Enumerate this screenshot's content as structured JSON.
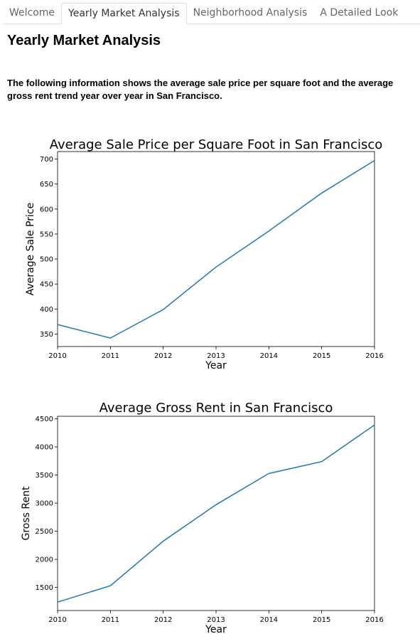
{
  "tabs": [
    {
      "label": "Welcome",
      "active": false
    },
    {
      "label": "Yearly Market Analysis",
      "active": true
    },
    {
      "label": "Neighborhood Analysis",
      "active": false
    },
    {
      "label": "A Detailed Look",
      "active": false
    }
  ],
  "page": {
    "title": "Yearly Market Analysis",
    "intro": "The following information shows the average sale price per square foot and the average gross rent trend year over year in San Francisco."
  },
  "colors": {
    "line": "#1f77b4"
  },
  "chart_data": [
    {
      "type": "line",
      "title": "Average Sale Price per Square Foot in San Francisco",
      "xlabel": "Year",
      "ylabel": "Average Sale Price",
      "x": [
        2010,
        2011,
        2012,
        2013,
        2014,
        2015,
        2016
      ],
      "series": [
        {
          "values": [
            369,
            342,
            399,
            484,
            556,
            632,
            697
          ]
        }
      ],
      "xlim": [
        2010,
        2016
      ],
      "ylim": [
        325,
        715
      ],
      "yticks": [
        350,
        400,
        450,
        500,
        550,
        600,
        650,
        700
      ],
      "grid": false
    },
    {
      "type": "line",
      "title": "Average Gross Rent in San Francisco",
      "xlabel": "Year",
      "ylabel": "Gross Rent",
      "x": [
        2010,
        2011,
        2012,
        2013,
        2014,
        2015,
        2016
      ],
      "series": [
        {
          "values": [
            1239,
            1530,
            2324,
            2972,
            3528,
            3739,
            4390
          ]
        }
      ],
      "xlim": [
        2010,
        2016
      ],
      "ylim": [
        1090,
        4545
      ],
      "yticks": [
        1500,
        2000,
        2500,
        3000,
        3500,
        4000,
        4500
      ],
      "grid": false
    }
  ]
}
